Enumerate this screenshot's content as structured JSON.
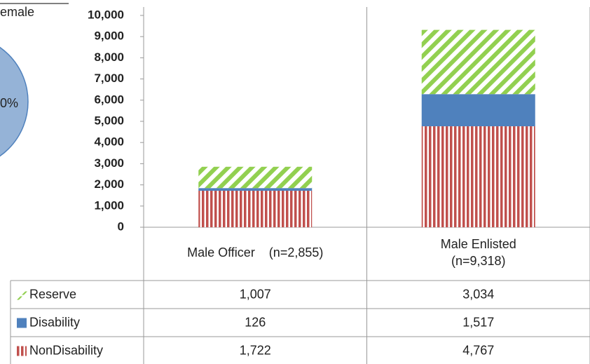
{
  "fragment": {
    "legend_text": "emale",
    "label": "0%"
  },
  "chart_data": {
    "type": "stacked_bar",
    "categories": [
      "Male Officer    (n=2,855)",
      "Male Enlisted\n(n=9,318)"
    ],
    "series": [
      {
        "name": "Reserve",
        "color": "#92d050",
        "pattern": "diagonal",
        "values": [
          1007,
          3034
        ],
        "value_labels": [
          "1,007",
          "3,034"
        ]
      },
      {
        "name": "Disability",
        "color": "#4f81bd",
        "pattern": "solid",
        "values": [
          126,
          1517
        ],
        "value_labels": [
          "126",
          "1,517"
        ]
      },
      {
        "name": "NonDisability",
        "color": "#c0504d",
        "pattern": "vertical",
        "values": [
          1722,
          4767
        ],
        "value_labels": [
          "1,722",
          "4,767"
        ]
      }
    ],
    "ylim": [
      0,
      10000
    ],
    "yticks": [
      0,
      {
        "value": 1000,
        "label": "1,000"
      },
      {
        "value": 2000,
        "label": "2,000"
      },
      {
        "value": 3000,
        "label": "3,000"
      },
      {
        "value": 4000,
        "label": "4,000"
      },
      {
        "value": 5000,
        "label": "5,000"
      },
      {
        "value": 6000,
        "label": "6,000"
      },
      {
        "value": 7000,
        "label": "7,000"
      },
      {
        "value": 8000,
        "label": "8,000"
      },
      {
        "value": 9000,
        "label": "9,000"
      },
      {
        "value": 10000,
        "label": "10,000"
      }
    ],
    "data_table": true
  }
}
